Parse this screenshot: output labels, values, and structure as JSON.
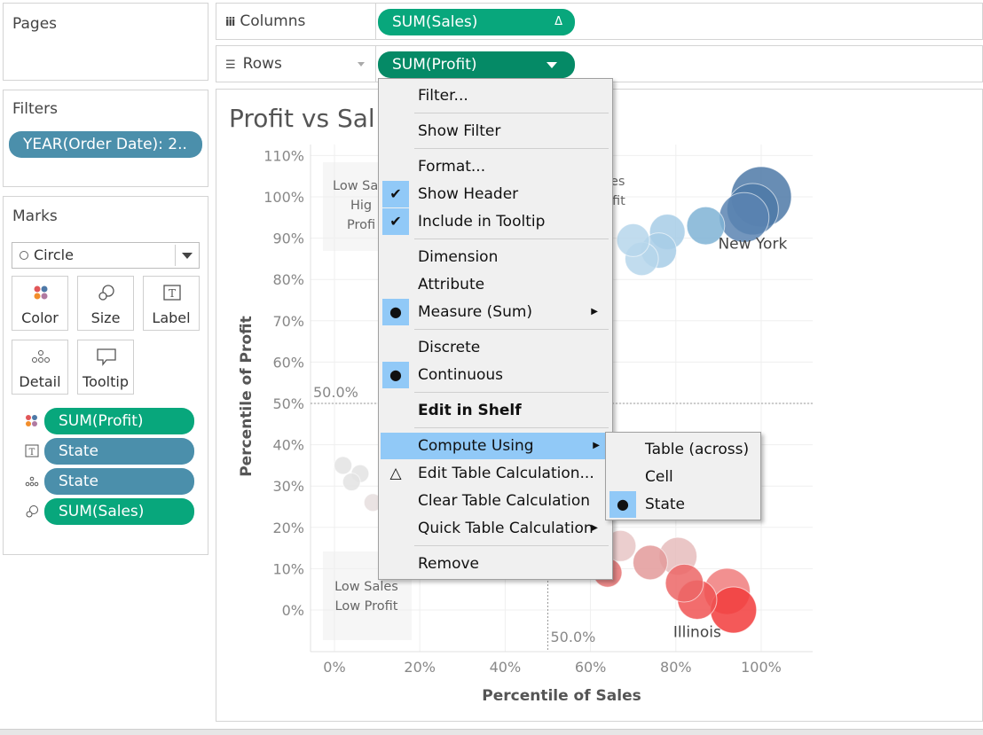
{
  "pages": {
    "title": "Pages"
  },
  "filters": {
    "title": "Filters",
    "pill": "YEAR(Order Date): 2.."
  },
  "marks": {
    "title": "Marks",
    "mark_type": "Circle",
    "cards": [
      "Color",
      "Size",
      "Label",
      "Detail",
      "Tooltip"
    ],
    "fields": [
      "SUM(Profit)",
      "State",
      "State",
      "SUM(Sales)"
    ]
  },
  "columns": {
    "label": "Columns",
    "pill": "SUM(Sales)",
    "delta": "Δ"
  },
  "rows": {
    "label": "Rows",
    "pill": "SUM(Profit)"
  },
  "context_menu": {
    "items": [
      "Filter...",
      "Show Filter",
      "Format...",
      "Show Header",
      "Include in Tooltip",
      "Dimension",
      "Attribute",
      "Measure (Sum)",
      "Discrete",
      "Continuous",
      "Edit in Shelf",
      "Compute Using",
      "Edit Table Calculation...",
      "Clear Table Calculation",
      "Quick Table Calculation",
      "Remove"
    ],
    "submenu": [
      "Table (across)",
      "Cell",
      "State"
    ]
  },
  "colors": {
    "accent_green": "#08a77c",
    "pill_blue": "#4b8fab",
    "menu_highlight": "#91c9f7",
    "high_blue": "#4e79a7",
    "low_red": "#f23c3c"
  },
  "chart_data": {
    "type": "scatter",
    "title": "Profit vs Sales",
    "title_visible": "Profit vs Sal",
    "xlabel": "Percentile of Sales",
    "ylabel": "Percentile of Profit",
    "x_ticks": [
      "0%",
      "20%",
      "40%",
      "60%",
      "80%",
      "100%"
    ],
    "y_ticks": [
      "110%",
      "100%",
      "90%",
      "80%",
      "70%",
      "60%",
      "50%",
      "40%",
      "30%",
      "20%",
      "10%",
      "0%"
    ],
    "xlim": [
      0,
      1.12
    ],
    "ylim": [
      -0.05,
      1.12
    ],
    "reference_lines": {
      "x": 0.5,
      "y": 0.5,
      "x_label": "50.0%",
      "y_label": "50.0%"
    },
    "quadrant_labels": {
      "top_left": [
        "Low Sa",
        "Hig",
        "Profi"
      ],
      "top_right": [
        "es",
        "fit"
      ],
      "bottom_left": [
        "Low Sales",
        "Low Profit"
      ]
    },
    "point_labels": [
      {
        "text": "New York",
        "x": 0.98,
        "y": 0.9
      },
      {
        "text": "Illinois",
        "x": 0.85,
        "y": -0.04
      }
    ],
    "points": [
      {
        "x": 1.0,
        "y": 1.0,
        "size": 1.0,
        "color": "#4e79a7"
      },
      {
        "x": 0.98,
        "y": 0.97,
        "size": 0.7,
        "color": "#4e79a7"
      },
      {
        "x": 0.96,
        "y": 0.95,
        "size": 0.65,
        "color": "#5b84b1"
      },
      {
        "x": 0.87,
        "y": 0.93,
        "size": 0.35,
        "color": "#7fb3d5"
      },
      {
        "x": 0.78,
        "y": 0.915,
        "size": 0.3,
        "color": "#a7cde6"
      },
      {
        "x": 0.76,
        "y": 0.87,
        "size": 0.3,
        "color": "#a7cde6"
      },
      {
        "x": 0.72,
        "y": 0.85,
        "size": 0.26,
        "color": "#b6d6eb"
      },
      {
        "x": 0.7,
        "y": 0.895,
        "size": 0.25,
        "color": "#b6d6eb"
      },
      {
        "x": 0.02,
        "y": 0.35,
        "size": 0.05,
        "color": "#e3e3e3"
      },
      {
        "x": 0.06,
        "y": 0.33,
        "size": 0.05,
        "color": "#e3e3e3"
      },
      {
        "x": 0.04,
        "y": 0.31,
        "size": 0.05,
        "color": "#e3e3e3"
      },
      {
        "x": 0.09,
        "y": 0.26,
        "size": 0.05,
        "color": "#e6dede"
      },
      {
        "x": 0.67,
        "y": 0.155,
        "size": 0.22,
        "color": "#e8c6c6"
      },
      {
        "x": 0.74,
        "y": 0.115,
        "size": 0.28,
        "color": "#e39a9a"
      },
      {
        "x": 0.805,
        "y": 0.13,
        "size": 0.35,
        "color": "#e6bcbc"
      },
      {
        "x": 0.64,
        "y": 0.09,
        "size": 0.18,
        "color": "#e57373"
      },
      {
        "x": 0.82,
        "y": 0.065,
        "size": 0.35,
        "color": "#ec6666"
      },
      {
        "x": 0.92,
        "y": 0.045,
        "size": 0.55,
        "color": "#f07c7c"
      },
      {
        "x": 0.85,
        "y": 0.025,
        "size": 0.38,
        "color": "#f05353"
      },
      {
        "x": 0.935,
        "y": 0.0,
        "size": 0.55,
        "color": "#f23c3c"
      }
    ]
  }
}
